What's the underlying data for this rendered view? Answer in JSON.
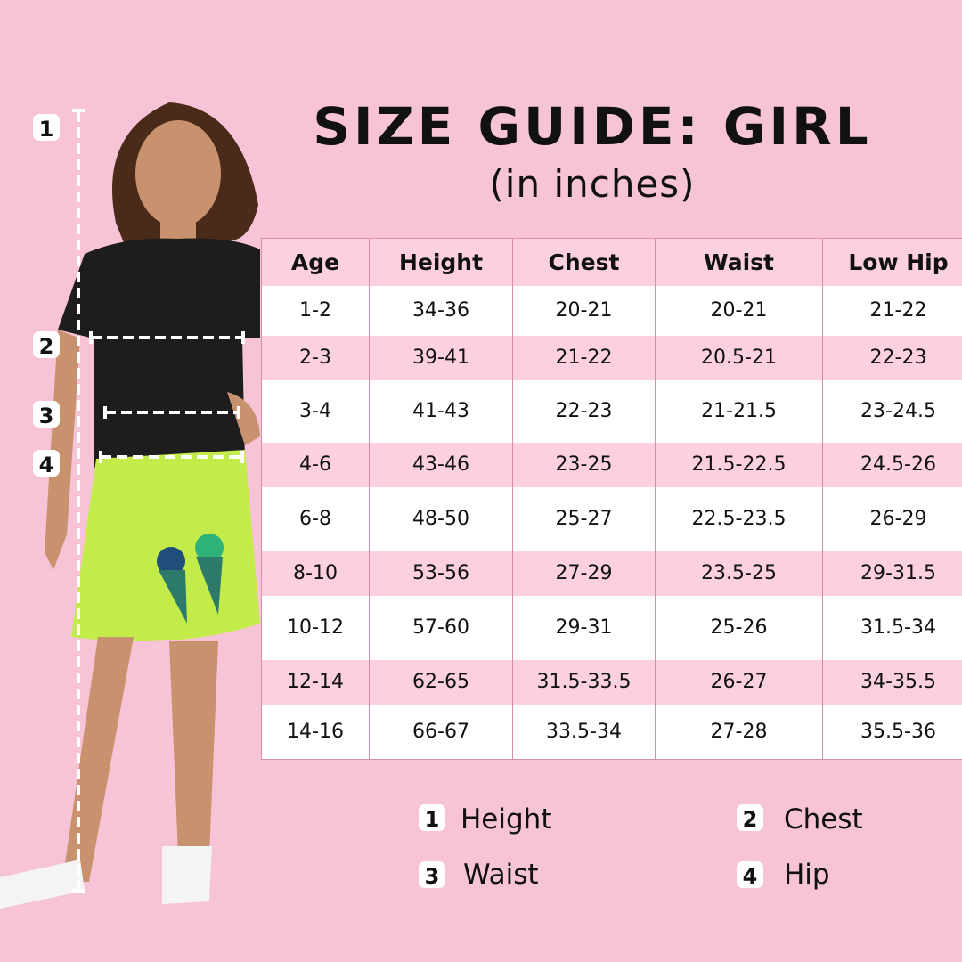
{
  "title": "SIZE GUIDE: GIRL",
  "subtitle": "(in inches)",
  "colors": {
    "background": "#f7c3d6",
    "row_pink": "#fcd0df",
    "row_white": "#ffffff",
    "border": "#d98fab"
  },
  "table": {
    "headers": [
      "Age",
      "Height",
      "Chest",
      "Waist",
      "Low Hip"
    ],
    "rows": [
      [
        "1-2",
        "34-36",
        "20-21",
        "20-21",
        "21-22"
      ],
      [
        "2-3",
        "39-41",
        "21-22",
        "20.5-21",
        "22-23"
      ],
      [
        "3-4",
        "41-43",
        "22-23",
        "21-21.5",
        "23-24.5"
      ],
      [
        "4-6",
        "43-46",
        "23-25",
        "21.5-22.5",
        "24.5-26"
      ],
      [
        "6-8",
        "48-50",
        "25-27",
        "22.5-23.5",
        "26-29"
      ],
      [
        "8-10",
        "53-56",
        "27-29",
        "23.5-25",
        "29-31.5"
      ],
      [
        "10-12",
        "57-60",
        "29-31",
        "25-26",
        "31.5-34"
      ],
      [
        "12-14",
        "62-65",
        "31.5-33.5",
        "26-27",
        "34-35.5"
      ],
      [
        "14-16",
        "66-67",
        "33.5-34",
        "27-28",
        "35.5-36"
      ]
    ]
  },
  "markers": [
    "1",
    "2",
    "3",
    "4"
  ],
  "legend": [
    {
      "num": "1",
      "label": "Height"
    },
    {
      "num": "2",
      "label": "Chest"
    },
    {
      "num": "3",
      "label": "Waist"
    },
    {
      "num": "4",
      "label": "Hip"
    }
  ]
}
